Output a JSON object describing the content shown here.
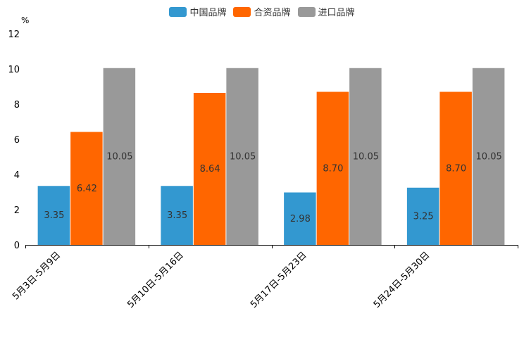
{
  "chart_data": {
    "type": "bar",
    "unit": "%",
    "categories": [
      "5月3日-5月9日",
      "5月10日-5月16日",
      "5月17日-5月23日",
      "5月24日-5月30日"
    ],
    "series": [
      {
        "name": "中国品牌",
        "values": [
          3.35,
          3.35,
          2.98,
          3.25
        ],
        "labels": [
          "3.35",
          "3.35",
          "2.98",
          "3.25"
        ],
        "color": "#3398d0"
      },
      {
        "name": "合资品牌",
        "values": [
          6.42,
          8.64,
          8.7,
          8.7
        ],
        "labels": [
          "6.42",
          "8.64",
          "8.70",
          "8.70"
        ],
        "color": "#ff6600"
      },
      {
        "name": "进口品牌",
        "values": [
          10.05,
          10.05,
          10.05,
          10.05
        ],
        "labels": [
          "10.05",
          "10.05",
          "10.05",
          "10.05"
        ],
        "color": "#999999"
      }
    ],
    "ylim": [
      0,
      12
    ],
    "yticks": [
      0,
      2,
      4,
      6,
      8,
      10,
      12
    ],
    "ytick_labels": [
      "0",
      "2",
      "4",
      "6",
      "8",
      "10",
      "12"
    ],
    "legend_position": "top-center",
    "grid": false
  }
}
